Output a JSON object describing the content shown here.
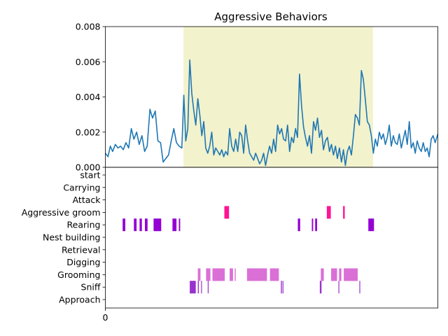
{
  "colors": {
    "line": "#1f77b4",
    "highlight": "#f2f2cc",
    "aggressive": "#ff1493",
    "rearing": "#9400d3",
    "grooming": "#da70d6",
    "sniff": "#9932cc",
    "axis": "#000000"
  },
  "chart_data": [
    {
      "type": "line",
      "title": "Aggressive Behaviors",
      "xlabel": "",
      "ylabel": "",
      "xlim": [
        0,
        1000
      ],
      "ylim": [
        0,
        0.008
      ],
      "yticks": [
        "0.000",
        "0.002",
        "0.004",
        "0.006",
        "0.008"
      ],
      "grid": false,
      "highlight_span": [
        235,
        805
      ],
      "series": [
        {
          "points": [
            [
              0,
              0.0008
            ],
            [
              8,
              0.0006
            ],
            [
              15,
              0.0012
            ],
            [
              22,
              0.0009
            ],
            [
              30,
              0.0013
            ],
            [
              38,
              0.0011
            ],
            [
              46,
              0.0012
            ],
            [
              54,
              0.001
            ],
            [
              62,
              0.0014
            ],
            [
              70,
              0.0011
            ],
            [
              78,
              0.0022
            ],
            [
              86,
              0.0016
            ],
            [
              94,
              0.002
            ],
            [
              102,
              0.0013
            ],
            [
              110,
              0.0018
            ],
            [
              118,
              0.0009
            ],
            [
              126,
              0.0012
            ],
            [
              134,
              0.0033
            ],
            [
              142,
              0.0028
            ],
            [
              150,
              0.0032
            ],
            [
              158,
              0.0015
            ],
            [
              166,
              0.0014
            ],
            [
              174,
              0.0003
            ],
            [
              182,
              0.0005
            ],
            [
              190,
              0.0007
            ],
            [
              198,
              0.0015
            ],
            [
              206,
              0.0022
            ],
            [
              214,
              0.0014
            ],
            [
              222,
              0.0012
            ],
            [
              230,
              0.0011
            ],
            [
              236,
              0.0041
            ],
            [
              242,
              0.0015
            ],
            [
              248,
              0.0022
            ],
            [
              254,
              0.0061
            ],
            [
              260,
              0.0042
            ],
            [
              266,
              0.0032
            ],
            [
              272,
              0.0024
            ],
            [
              278,
              0.0039
            ],
            [
              284,
              0.003
            ],
            [
              290,
              0.0018
            ],
            [
              296,
              0.0026
            ],
            [
              302,
              0.0011
            ],
            [
              308,
              0.0008
            ],
            [
              314,
              0.0012
            ],
            [
              320,
              0.002
            ],
            [
              326,
              0.0007
            ],
            [
              332,
              0.0011
            ],
            [
              338,
              0.0009
            ],
            [
              344,
              0.0007
            ],
            [
              350,
              0.001
            ],
            [
              356,
              0.0006
            ],
            [
              362,
              0.0009
            ],
            [
              368,
              0.0007
            ],
            [
              374,
              0.0022
            ],
            [
              380,
              0.0012
            ],
            [
              386,
              0.0009
            ],
            [
              392,
              0.0016
            ],
            [
              398,
              0.0009
            ],
            [
              404,
              0.002
            ],
            [
              410,
              0.0018
            ],
            [
              416,
              0.0008
            ],
            [
              422,
              0.0024
            ],
            [
              428,
              0.0015
            ],
            [
              434,
              0.0008
            ],
            [
              440,
              0.0006
            ],
            [
              446,
              0.0004
            ],
            [
              452,
              0.0008
            ],
            [
              458,
              0.0005
            ],
            [
              464,
              0.0002
            ],
            [
              470,
              0.0004
            ],
            [
              476,
              0.0008
            ],
            [
              482,
              0.0001
            ],
            [
              488,
              0.0007
            ],
            [
              494,
              0.0012
            ],
            [
              500,
              0.0008
            ],
            [
              506,
              0.0016
            ],
            [
              512,
              0.0009
            ],
            [
              518,
              0.0024
            ],
            [
              524,
              0.0019
            ],
            [
              530,
              0.0022
            ],
            [
              536,
              0.0016
            ],
            [
              542,
              0.0015
            ],
            [
              548,
              0.0024
            ],
            [
              554,
              0.0009
            ],
            [
              560,
              0.0017
            ],
            [
              566,
              0.0014
            ],
            [
              572,
              0.0022
            ],
            [
              578,
              0.0017
            ],
            [
              584,
              0.0053
            ],
            [
              590,
              0.0035
            ],
            [
              596,
              0.0023
            ],
            [
              602,
              0.0017
            ],
            [
              608,
              0.0012
            ],
            [
              614,
              0.0018
            ],
            [
              620,
              0.0008
            ],
            [
              626,
              0.0026
            ],
            [
              632,
              0.0021
            ],
            [
              638,
              0.0028
            ],
            [
              644,
              0.0017
            ],
            [
              650,
              0.0021
            ],
            [
              656,
              0.001
            ],
            [
              662,
              0.0015
            ],
            [
              668,
              0.0017
            ],
            [
              674,
              0.0009
            ],
            [
              680,
              0.0013
            ],
            [
              686,
              0.0007
            ],
            [
              692,
              0.0012
            ],
            [
              698,
              0.0005
            ],
            [
              704,
              0.0011
            ],
            [
              710,
              0.0003
            ],
            [
              716,
              0.001
            ],
            [
              722,
              0.0001
            ],
            [
              728,
              0.0009
            ],
            [
              734,
              0.0012
            ],
            [
              740,
              0.0007
            ],
            [
              746,
              0.0018
            ],
            [
              752,
              0.003
            ],
            [
              758,
              0.0028
            ],
            [
              764,
              0.0024
            ],
            [
              770,
              0.0055
            ],
            [
              776,
              0.005
            ],
            [
              782,
              0.0038
            ],
            [
              788,
              0.0026
            ],
            [
              794,
              0.0024
            ],
            [
              800,
              0.0018
            ],
            [
              806,
              0.0008
            ],
            [
              812,
              0.0016
            ],
            [
              818,
              0.0012
            ],
            [
              824,
              0.002
            ],
            [
              830,
              0.0016
            ],
            [
              836,
              0.0019
            ],
            [
              842,
              0.0013
            ],
            [
              848,
              0.0017
            ],
            [
              854,
              0.0024
            ],
            [
              860,
              0.0012
            ],
            [
              866,
              0.0018
            ],
            [
              872,
              0.0014
            ],
            [
              878,
              0.0013
            ],
            [
              884,
              0.0019
            ],
            [
              890,
              0.0011
            ],
            [
              896,
              0.0016
            ],
            [
              902,
              0.0021
            ],
            [
              908,
              0.0013
            ],
            [
              914,
              0.0026
            ],
            [
              920,
              0.0011
            ],
            [
              926,
              0.0014
            ],
            [
              932,
              0.0008
            ],
            [
              938,
              0.0015
            ],
            [
              944,
              0.0011
            ],
            [
              950,
              0.0009
            ],
            [
              956,
              0.0014
            ],
            [
              962,
              0.0009
            ],
            [
              968,
              0.0011
            ],
            [
              974,
              0.0006
            ],
            [
              980,
              0.0016
            ],
            [
              986,
              0.0018
            ],
            [
              992,
              0.0014
            ],
            [
              1000,
              0.0019
            ]
          ]
        }
      ]
    },
    {
      "type": "event-raster",
      "xlim": [
        0,
        1000
      ],
      "xticks": [
        "0"
      ],
      "categories": [
        "start",
        "Carrying",
        "Attack",
        "Aggressive groom",
        "Rearing",
        "Nest building",
        "Retrieval",
        "Digging",
        "Grooming",
        "Sniff",
        "Approach"
      ],
      "events": [
        {
          "category": "Aggressive groom",
          "color": "aggressive",
          "intervals": [
            [
              358,
              372
            ],
            [
              666,
              678
            ],
            [
              715,
              720
            ]
          ]
        },
        {
          "category": "Rearing",
          "color": "rearing",
          "intervals": [
            [
              52,
              60
            ],
            [
              86,
              94
            ],
            [
              103,
              110
            ],
            [
              119,
              127
            ],
            [
              145,
              168
            ],
            [
              202,
              214
            ],
            [
              221,
              225
            ],
            [
              579,
              586
            ],
            [
              621,
              625
            ],
            [
              631,
              634
            ],
            [
              634,
              637
            ],
            [
              791,
              808
            ]
          ]
        },
        {
          "category": "Grooming",
          "color": "grooming",
          "intervals": [
            [
              278,
              286
            ],
            [
              303,
              316
            ],
            [
              322,
              359
            ],
            [
              374,
              384
            ],
            [
              389,
              392
            ],
            [
              426,
              486
            ],
            [
              495,
              522
            ],
            [
              648,
              657
            ],
            [
              679,
              697
            ],
            [
              703,
              710
            ],
            [
              717,
              742
            ],
            [
              742,
              759
            ]
          ]
        },
        {
          "category": "Sniff",
          "color": "sniff",
          "intervals": [
            [
              254,
              272
            ],
            [
              278,
              281
            ],
            [
              288,
              290
            ],
            [
              308,
              310
            ],
            [
              528,
              531
            ],
            [
              533,
              535
            ],
            [
              645,
              650
            ],
            [
              701,
              703
            ],
            [
              764,
              766
            ]
          ]
        }
      ]
    }
  ]
}
